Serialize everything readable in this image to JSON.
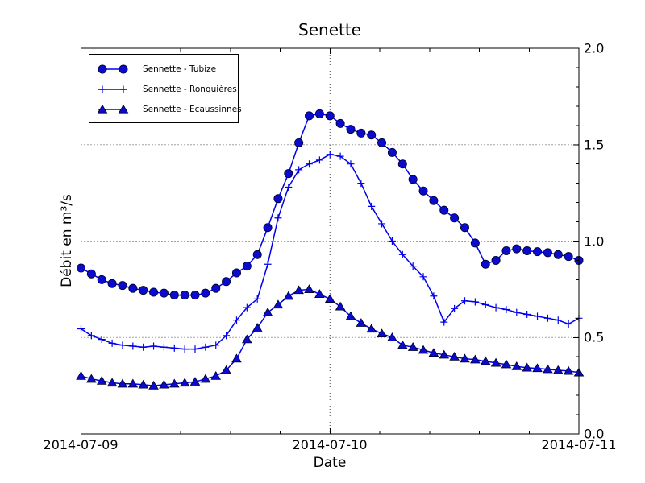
{
  "chart_data": {
    "type": "line",
    "title": "Senette",
    "xlabel": "Date",
    "ylabel": "Débit en m³/s",
    "x_tick_labels": [
      "2014-07-09",
      "2014-07-10",
      "2014-07-11"
    ],
    "y_tick_labels": [
      "0.0",
      "0.5",
      "1.0",
      "1.5",
      "2.0"
    ],
    "ylim": [
      0.0,
      2.0
    ],
    "x_range_hours": [
      0,
      48
    ],
    "x_major_tick_hours": [
      0,
      24,
      48
    ],
    "x_minor_tick_hours": [
      4.8,
      9.6,
      14.4,
      19.2,
      28.8,
      33.6,
      38.4,
      43.2
    ],
    "y_major_ticks": [
      0.0,
      0.5,
      1.0,
      1.5,
      2.0
    ],
    "y_minor_tick_step": 0.1,
    "grid": {
      "horizontal_at": [
        0.5,
        1.0,
        1.5
      ],
      "vertical_at_hours": [
        24
      ],
      "style": "dotted",
      "color": "#444444"
    },
    "legend_position": "upper left",
    "line_color": "#0000ee",
    "marker_fill": "#0b0bd0",
    "marker_edge": "#000022",
    "series": [
      {
        "name": "Sennette - Tubize",
        "marker": "circle",
        "x_start_hour": 0,
        "x_step_hours": 1,
        "values": [
          0.86,
          0.83,
          0.8,
          0.78,
          0.77,
          0.755,
          0.745,
          0.735,
          0.73,
          0.72,
          0.72,
          0.72,
          0.73,
          0.755,
          0.79,
          0.835,
          0.87,
          0.93,
          1.07,
          1.22,
          1.35,
          1.51,
          1.65,
          1.66,
          1.65,
          1.61,
          1.58,
          1.56,
          1.55,
          1.51,
          1.46,
          1.4,
          1.32,
          1.26,
          1.21,
          1.16,
          1.12,
          1.07,
          0.99,
          0.88,
          0.9,
          0.95,
          0.96,
          0.95,
          0.945,
          0.94,
          0.93,
          0.92,
          0.9
        ]
      },
      {
        "name": "Sennette - Ronquières",
        "marker": "plus",
        "x_start_hour": 0,
        "x_step_hours": 1,
        "values": [
          0.545,
          0.51,
          0.49,
          0.47,
          0.46,
          0.455,
          0.45,
          0.455,
          0.45,
          0.445,
          0.44,
          0.44,
          0.45,
          0.46,
          0.51,
          0.59,
          0.655,
          0.7,
          0.88,
          1.12,
          1.28,
          1.37,
          1.4,
          1.42,
          1.45,
          1.44,
          1.4,
          1.3,
          1.18,
          1.09,
          1.0,
          0.93,
          0.87,
          0.815,
          0.715,
          0.58,
          0.65,
          0.69,
          0.685,
          0.67,
          0.655,
          0.645,
          0.63,
          0.62,
          0.61,
          0.6,
          0.59,
          0.57,
          0.6
        ]
      },
      {
        "name": "Sennette - Ecaussinnes",
        "marker": "triangle-up",
        "x_start_hour": 0,
        "x_step_hours": 1,
        "values": [
          0.3,
          0.285,
          0.275,
          0.265,
          0.26,
          0.26,
          0.255,
          0.25,
          0.255,
          0.26,
          0.265,
          0.27,
          0.285,
          0.3,
          0.33,
          0.39,
          0.49,
          0.55,
          0.63,
          0.67,
          0.715,
          0.745,
          0.75,
          0.725,
          0.7,
          0.66,
          0.61,
          0.575,
          0.545,
          0.52,
          0.5,
          0.46,
          0.45,
          0.435,
          0.42,
          0.41,
          0.4,
          0.39,
          0.385,
          0.377,
          0.368,
          0.36,
          0.35,
          0.343,
          0.34,
          0.335,
          0.33,
          0.326,
          0.318
        ]
      }
    ]
  }
}
